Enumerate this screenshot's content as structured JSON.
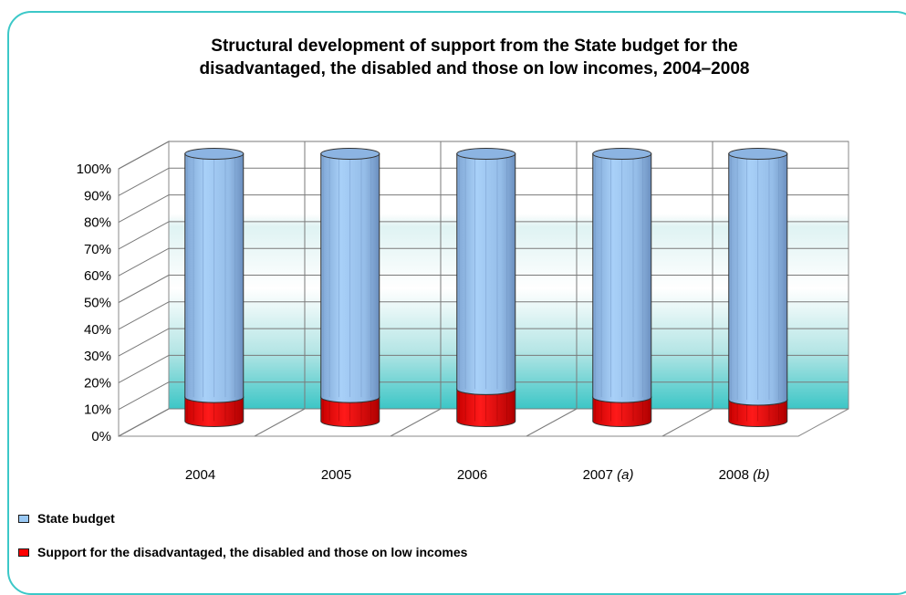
{
  "chart_data": {
    "type": "bar",
    "stacked": true,
    "percent_stacked": true,
    "title": "Structural development of support from the State budget for the disadvantaged, the disabled and those on low incomes, 2004–2008",
    "title_line1": "Structural development of support from the State budget for the",
    "title_line2": "disadvantaged, the disabled and those on low incomes, 2004–2008",
    "categories": [
      "2004",
      "2005",
      "2006",
      "2007",
      "2008"
    ],
    "category_notes": [
      "",
      "",
      "",
      "(a)",
      "(b)"
    ],
    "y_ticks": [
      "0%",
      "10%",
      "20%",
      "30%",
      "40%",
      "50%",
      "60%",
      "70%",
      "80%",
      "90%",
      "100%"
    ],
    "ylim": [
      0,
      100
    ],
    "grid": true,
    "legend_position": "bottom-left",
    "series": [
      {
        "name": "Support for the disadvantaged, the disabled and those on low incomes",
        "values": [
          9,
          9,
          12,
          9,
          8
        ],
        "color": "#ff0000"
      },
      {
        "name": "State budget",
        "values": [
          91,
          91,
          88,
          91,
          92
        ],
        "color": "#99c8f4"
      }
    ]
  }
}
